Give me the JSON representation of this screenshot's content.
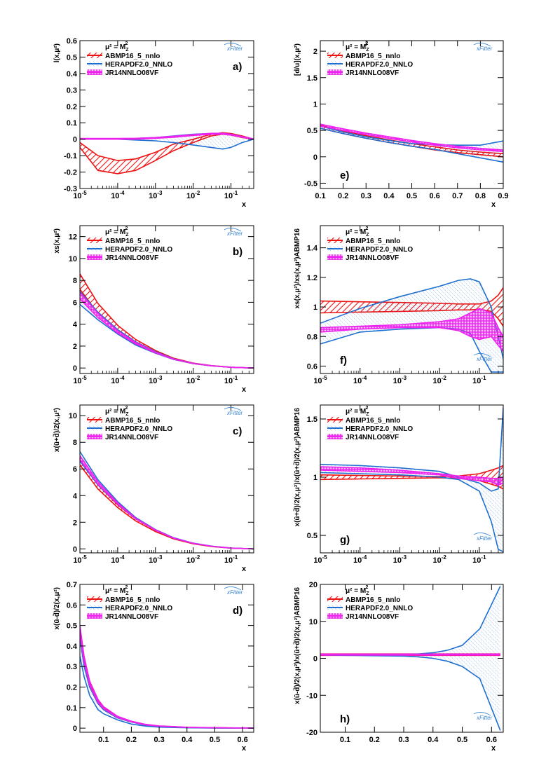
{
  "colors": {
    "abmp": "#ee1111",
    "hera": "#1f6fd0",
    "jr": "#ee22ee",
    "xfitter": "#3a86d6",
    "axis": "#000000"
  },
  "legend": {
    "scale_label": "μ² = M",
    "scale_sub": "Z",
    "scale_sup": "2",
    "entries": [
      "ABMP16_5_nnlo",
      "HERAPDF2.0_NNLO",
      "JR14NNLO08VF"
    ]
  },
  "logo_text": "xFitter",
  "chart_data": [
    {
      "id": "a",
      "panel_label": "a)",
      "type": "line",
      "xscale": "log",
      "xlabel": "x",
      "ylabel": "l(x,μ²)",
      "xlim": [
        1e-05,
        0.4
      ],
      "ylim": [
        -0.3,
        0.6
      ],
      "xticks": [
        "10^-5",
        "10^-4",
        "10^-3",
        "10^-2",
        "10^-1"
      ],
      "yticks": [
        "-0.3",
        "-0.2",
        "-0.1",
        "0",
        "0.1",
        "0.2",
        "0.3",
        "0.4",
        "0.5",
        "0.6"
      ],
      "x": [
        1e-05,
        3e-05,
        0.0001,
        0.0003,
        0.001,
        0.003,
        0.01,
        0.03,
        0.06,
        0.1,
        0.2,
        0.4
      ],
      "series": [
        {
          "name": "ABMP16_5_nnlo",
          "band_lo": [
            -0.05,
            -0.19,
            -0.21,
            -0.19,
            -0.13,
            -0.07,
            -0.02,
            0.02,
            0.03,
            0.025,
            0.01,
            0.0
          ],
          "band_hi": [
            -0.02,
            -0.1,
            -0.13,
            -0.12,
            -0.08,
            -0.03,
            0.0,
            0.03,
            0.04,
            0.035,
            0.02,
            0.0
          ]
        },
        {
          "name": "HERAPDF2.0_NNLO",
          "band_lo": [
            0.0,
            0.0,
            0.0,
            -0.005,
            -0.01,
            -0.02,
            -0.035,
            -0.05,
            -0.06,
            -0.05,
            -0.02,
            0.0
          ],
          "band_hi": [
            0.0,
            0.0,
            0.0,
            0.005,
            0.01,
            0.02,
            0.03,
            0.035,
            0.035,
            0.03,
            0.015,
            0.0
          ]
        },
        {
          "name": "JR14NNLO08VF",
          "band_lo": [
            0.0,
            0.0,
            0.0,
            0.0,
            0.005,
            0.012,
            0.022,
            0.03,
            0.03,
            0.025,
            0.012,
            0.0
          ],
          "band_hi": [
            0.005,
            0.005,
            0.005,
            0.006,
            0.01,
            0.018,
            0.028,
            0.036,
            0.036,
            0.03,
            0.016,
            0.002
          ]
        }
      ]
    },
    {
      "id": "e",
      "panel_label": "e)",
      "type": "line",
      "xscale": "linear",
      "xlabel": "x",
      "ylabel": "[d/u](x,μ²)",
      "xlim": [
        0.1,
        0.9
      ],
      "ylim": [
        -0.6,
        2.2
      ],
      "xticks": [
        "0.1",
        "0.2",
        "0.3",
        "0.4",
        "0.5",
        "0.6",
        "0.7",
        "0.8",
        "0.9"
      ],
      "yticks": [
        "-0.5",
        "0",
        "0.5",
        "1",
        "1.5",
        "2"
      ],
      "x": [
        0.1,
        0.2,
        0.3,
        0.4,
        0.5,
        0.6,
        0.7,
        0.8,
        0.9
      ],
      "series": [
        {
          "name": "ABMP16_5_nnlo",
          "band_lo": [
            0.54,
            0.44,
            0.35,
            0.27,
            0.2,
            0.13,
            0.08,
            0.04,
            0.0
          ],
          "band_hi": [
            0.6,
            0.49,
            0.4,
            0.32,
            0.25,
            0.19,
            0.13,
            0.09,
            0.06
          ]
        },
        {
          "name": "HERAPDF2.0_NNLO",
          "band_lo": [
            0.54,
            0.44,
            0.35,
            0.27,
            0.2,
            0.14,
            0.06,
            -0.02,
            -0.1
          ],
          "band_hi": [
            0.58,
            0.47,
            0.38,
            0.31,
            0.25,
            0.23,
            0.22,
            0.22,
            0.3
          ]
        },
        {
          "name": "JR14NNLO08VF",
          "band_lo": [
            0.58,
            0.5,
            0.42,
            0.35,
            0.28,
            0.22,
            0.17,
            0.13,
            0.1
          ],
          "band_hi": [
            0.62,
            0.53,
            0.45,
            0.38,
            0.31,
            0.25,
            0.2,
            0.16,
            0.13
          ]
        }
      ]
    },
    {
      "id": "b",
      "panel_label": "b)",
      "type": "line",
      "xscale": "log",
      "xlabel": "x",
      "ylabel": "xs(x,μ²)",
      "xlim": [
        1e-05,
        0.4
      ],
      "ylim": [
        -0.5,
        13
      ],
      "xticks": [
        "10^-5",
        "10^-4",
        "10^-3",
        "10^-2",
        "10^-1"
      ],
      "yticks": [
        "0",
        "2",
        "4",
        "6",
        "8",
        "10",
        "12"
      ],
      "x": [
        1e-05,
        3e-05,
        0.0001,
        0.0003,
        0.001,
        0.003,
        0.01,
        0.03,
        0.1,
        0.4
      ],
      "series": [
        {
          "name": "ABMP16_5_nnlo",
          "band_lo": [
            7.2,
            5.0,
            3.4,
            2.3,
            1.4,
            0.8,
            0.4,
            0.2,
            0.06,
            0.0
          ],
          "band_hi": [
            8.6,
            5.9,
            3.9,
            2.6,
            1.6,
            0.9,
            0.45,
            0.22,
            0.07,
            0.0
          ]
        },
        {
          "name": "HERAPDF2.0_NNLO",
          "band_lo": [
            5.8,
            4.4,
            3.1,
            2.1,
            1.35,
            0.78,
            0.4,
            0.2,
            0.06,
            0.0
          ],
          "band_hi": [
            7.0,
            5.1,
            3.5,
            2.4,
            1.5,
            0.85,
            0.43,
            0.21,
            0.07,
            0.0
          ]
        },
        {
          "name": "JR14NNLO08VF",
          "band_lo": [
            6.3,
            4.6,
            3.2,
            2.2,
            1.38,
            0.8,
            0.41,
            0.2,
            0.06,
            0.0
          ],
          "band_hi": [
            6.9,
            5.0,
            3.4,
            2.35,
            1.45,
            0.84,
            0.43,
            0.21,
            0.07,
            0.0
          ]
        }
      ]
    },
    {
      "id": "f",
      "panel_label": "f)",
      "type": "line",
      "xscale": "log",
      "xlabel": "",
      "ylabel": "xs(x,μ²)/xs(x,μ²)ABMP16",
      "xlim": [
        1e-05,
        0.4
      ],
      "ylim": [
        0.55,
        1.55
      ],
      "xticks": [
        "10^-5",
        "10^-4",
        "10^-3",
        "10^-2",
        "10^-1"
      ],
      "yticks": [
        "0.6",
        "0.8",
        "1",
        "1.2",
        "1.4"
      ],
      "x": [
        1e-05,
        0.0001,
        0.001,
        0.01,
        0.03,
        0.06,
        0.1,
        0.2,
        0.3,
        0.4
      ],
      "series": [
        {
          "name": "ABMP16_5_nnlo",
          "band_lo": [
            0.96,
            0.965,
            0.97,
            0.975,
            0.98,
            0.98,
            0.985,
            0.97,
            0.92,
            0.87
          ],
          "band_hi": [
            1.04,
            1.035,
            1.03,
            1.025,
            1.02,
            1.02,
            1.02,
            1.04,
            1.08,
            1.13
          ]
        },
        {
          "name": "HERAPDF2.0_NNLO",
          "band_lo": [
            0.75,
            0.83,
            0.85,
            0.86,
            0.85,
            0.82,
            0.7,
            0.56,
            0.56,
            0.56
          ],
          "band_hi": [
            0.89,
            0.99,
            1.07,
            1.14,
            1.18,
            1.19,
            1.17,
            1.0,
            0.8,
            0.65
          ]
        },
        {
          "name": "JR14NNLO08VF",
          "band_lo": [
            0.83,
            0.85,
            0.86,
            0.86,
            0.84,
            0.8,
            0.78,
            0.8,
            0.74,
            0.7
          ],
          "band_hi": [
            0.86,
            0.87,
            0.88,
            0.9,
            0.92,
            0.96,
            0.99,
            0.96,
            0.86,
            0.8
          ]
        }
      ]
    },
    {
      "id": "c",
      "panel_label": "c)",
      "type": "line",
      "xscale": "log",
      "xlabel": "x",
      "ylabel": "x(ū+d̄)/2(x,μ²)",
      "xlim": [
        1e-05,
        0.4
      ],
      "ylim": [
        -0.3,
        10.8
      ],
      "xticks": [
        "10^-5",
        "10^-4",
        "10^-3",
        "10^-2",
        "10^-1"
      ],
      "yticks": [
        "0",
        "2",
        "4",
        "6",
        "8",
        "10"
      ],
      "x": [
        1e-05,
        3e-05,
        0.0001,
        0.0003,
        0.001,
        0.003,
        0.01,
        0.03,
        0.1,
        0.4
      ],
      "series": [
        {
          "name": "ABMP16_5_nnlo",
          "band_lo": [
            6.3,
            4.5,
            3.1,
            2.1,
            1.3,
            0.75,
            0.38,
            0.18,
            0.05,
            0.0
          ],
          "band_hi": [
            6.7,
            4.8,
            3.3,
            2.25,
            1.4,
            0.8,
            0.41,
            0.2,
            0.06,
            0.0
          ]
        },
        {
          "name": "HERAPDF2.0_NNLO",
          "band_lo": [
            6.6,
            4.8,
            3.35,
            2.25,
            1.4,
            0.8,
            0.41,
            0.2,
            0.06,
            0.0
          ],
          "band_hi": [
            7.3,
            5.2,
            3.55,
            2.35,
            1.45,
            0.84,
            0.43,
            0.21,
            0.065,
            0.0
          ]
        },
        {
          "name": "JR14NNLO08VF",
          "band_lo": [
            6.7,
            4.85,
            3.35,
            2.25,
            1.4,
            0.8,
            0.41,
            0.2,
            0.06,
            0.0
          ],
          "band_hi": [
            7.0,
            5.05,
            3.45,
            2.3,
            1.43,
            0.82,
            0.42,
            0.2,
            0.06,
            0.0
          ]
        }
      ]
    },
    {
      "id": "g",
      "panel_label": "g)",
      "type": "line",
      "xscale": "log",
      "xlabel": "",
      "ylabel": "x(ū+d̄)/2(x,μ²)/x(ū+d̄)/2(x,μ²)ABMP16",
      "xlim": [
        1e-05,
        0.4
      ],
      "ylim": [
        0.35,
        1.62
      ],
      "xticks": [
        "10^-5",
        "10^-4",
        "10^-3",
        "10^-2",
        "10^-1"
      ],
      "yticks": [
        "0.5",
        "1",
        "1.5"
      ],
      "x": [
        1e-05,
        0.0001,
        0.001,
        0.01,
        0.03,
        0.1,
        0.2,
        0.3,
        0.4
      ],
      "series": [
        {
          "name": "ABMP16_5_nnlo",
          "band_lo": [
            0.98,
            0.985,
            0.99,
            0.995,
            0.99,
            0.97,
            0.94,
            0.92,
            0.9
          ],
          "band_hi": [
            1.02,
            1.015,
            1.01,
            1.005,
            1.01,
            1.03,
            1.06,
            1.08,
            1.1
          ]
        },
        {
          "name": "HERAPDF2.0_NNLO",
          "band_lo": [
            1.04,
            1.03,
            1.02,
            1.0,
            0.98,
            0.88,
            0.62,
            0.38,
            0.36
          ],
          "band_hi": [
            1.11,
            1.1,
            1.08,
            1.05,
            1.0,
            0.95,
            0.88,
            0.9,
            1.6
          ]
        },
        {
          "name": "JR14NNLO08VF",
          "band_lo": [
            1.06,
            1.05,
            1.04,
            1.02,
            0.99,
            0.97,
            0.96,
            0.93,
            0.95
          ],
          "band_hi": [
            1.09,
            1.08,
            1.06,
            1.03,
            1.01,
            1.0,
            0.99,
            0.99,
            1.0
          ]
        }
      ]
    },
    {
      "id": "d",
      "panel_label": "d)",
      "type": "line",
      "xscale": "linear",
      "xlabel": "x",
      "ylabel": "x(ū-d̄)/2(x,μ²)",
      "xlim": [
        0.015,
        0.64
      ],
      "ylim": [
        -0.02,
        0.7
      ],
      "xticks": [
        "0.1",
        "0.2",
        "0.3",
        "0.4",
        "0.5",
        "0.6"
      ],
      "yticks": [
        "0",
        "0.1",
        "0.2",
        "0.3",
        "0.4",
        "0.5",
        "0.6",
        "0.7"
      ],
      "x": [
        0.015,
        0.03,
        0.05,
        0.08,
        0.1,
        0.15,
        0.2,
        0.25,
        0.3,
        0.4,
        0.5,
        0.64
      ],
      "series": [
        {
          "name": "ABMP16_5_nnlo",
          "band_lo": [
            0.45,
            0.31,
            0.2,
            0.12,
            0.09,
            0.05,
            0.03,
            0.015,
            0.008,
            0.003,
            0.001,
            0.0
          ],
          "band_hi": [
            0.48,
            0.33,
            0.22,
            0.13,
            0.1,
            0.055,
            0.032,
            0.018,
            0.01,
            0.004,
            0.002,
            0.0
          ]
        },
        {
          "name": "HERAPDF2.0_NNLO",
          "band_lo": [
            0.35,
            0.25,
            0.16,
            0.09,
            0.07,
            0.04,
            0.02,
            0.01,
            0.005,
            0.002,
            0.0,
            0.0
          ],
          "band_hi": [
            0.44,
            0.3,
            0.2,
            0.12,
            0.09,
            0.05,
            0.03,
            0.015,
            0.008,
            0.003,
            0.001,
            0.0
          ]
        },
        {
          "name": "JR14NNLO08VF",
          "band_lo": [
            0.46,
            0.32,
            0.21,
            0.125,
            0.095,
            0.052,
            0.031,
            0.016,
            0.009,
            0.0035,
            0.0015,
            0.0
          ],
          "band_hi": [
            0.5,
            0.35,
            0.23,
            0.14,
            0.105,
            0.058,
            0.034,
            0.019,
            0.011,
            0.0045,
            0.0025,
            0.0
          ]
        }
      ]
    },
    {
      "id": "h",
      "panel_label": "h)",
      "type": "line",
      "xscale": "linear",
      "xlabel": "x",
      "ylabel": "x(ū-d̄)/2(x,μ²)/x(ū+d̄)/2(x,μ²)ABMP16",
      "xlim": [
        0.015,
        0.64
      ],
      "ylim": [
        -20,
        20
      ],
      "xticks": [
        "0.1",
        "0.2",
        "0.3",
        "0.4",
        "0.5",
        "0.6"
      ],
      "yticks": [
        "-20",
        "-10",
        "0",
        "10",
        "20"
      ],
      "x": [
        0.015,
        0.1,
        0.2,
        0.3,
        0.35,
        0.4,
        0.45,
        0.5,
        0.56,
        0.63
      ],
      "series": [
        {
          "name": "ABMP16_5_nnlo",
          "band_lo": [
            0.8,
            0.8,
            0.8,
            0.8,
            0.8,
            0.8,
            0.8,
            0.8,
            0.8,
            0.8
          ],
          "band_hi": [
            1.2,
            1.2,
            1.2,
            1.2,
            1.2,
            1.2,
            1.2,
            1.2,
            1.2,
            1.2
          ]
        },
        {
          "name": "HERAPDF2.0_NNLO",
          "band_lo": [
            0.9,
            0.8,
            0.7,
            0.6,
            0.4,
            0.0,
            -0.8,
            -2.2,
            -5.5,
            -19.5
          ],
          "band_hi": [
            1.0,
            1.0,
            1.0,
            1.0,
            1.2,
            1.5,
            2.2,
            3.5,
            8.0,
            19.5
          ]
        },
        {
          "name": "JR14NNLO08VF",
          "band_lo": [
            0.85,
            0.85,
            0.85,
            0.85,
            0.85,
            0.85,
            0.85,
            0.85,
            0.85,
            0.85
          ],
          "band_hi": [
            1.15,
            1.15,
            1.15,
            1.15,
            1.15,
            1.15,
            1.15,
            1.15,
            1.15,
            1.15
          ]
        }
      ]
    }
  ]
}
